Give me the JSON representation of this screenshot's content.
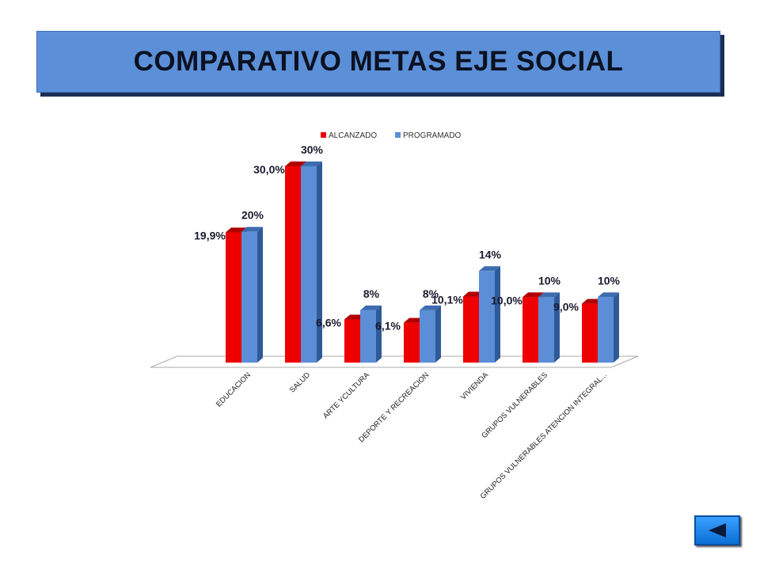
{
  "title": "COMPARATIVO METAS EJE SOCIAL",
  "colors": {
    "alcanzado": "#ee0000",
    "programado": "#5b8ed6",
    "banner": "#5b8fd8"
  },
  "nav": {
    "back_icon": "left-triangle-icon"
  },
  "chart_data": {
    "type": "bar",
    "categories": [
      "EDUCACION",
      "SALUD",
      "ARTE YCULTURA",
      "DEPORTE Y RECREACION",
      "VIVIENDA",
      "GRUPOS  VULNERABLES",
      "GRUPOS VULNERABLES ATENCION INTEGRAL..."
    ],
    "series": [
      {
        "name": "ALCANZADO",
        "values": [
          19.9,
          30.0,
          6.6,
          6.1,
          10.1,
          10.0,
          9.0
        ],
        "labels": [
          "19,9%",
          "30,0%",
          "6,6%",
          "6,1%",
          "10,1%",
          "10,0%",
          "9,0%"
        ]
      },
      {
        "name": "PROGRAMADO",
        "values": [
          20,
          30,
          8,
          8,
          14,
          10,
          10
        ],
        "labels": [
          "20%",
          "30%",
          "8%",
          "8%",
          "14%",
          "10%",
          "10%"
        ]
      }
    ],
    "ylim": [
      0,
      30
    ],
    "legend": "top",
    "grid": false
  }
}
